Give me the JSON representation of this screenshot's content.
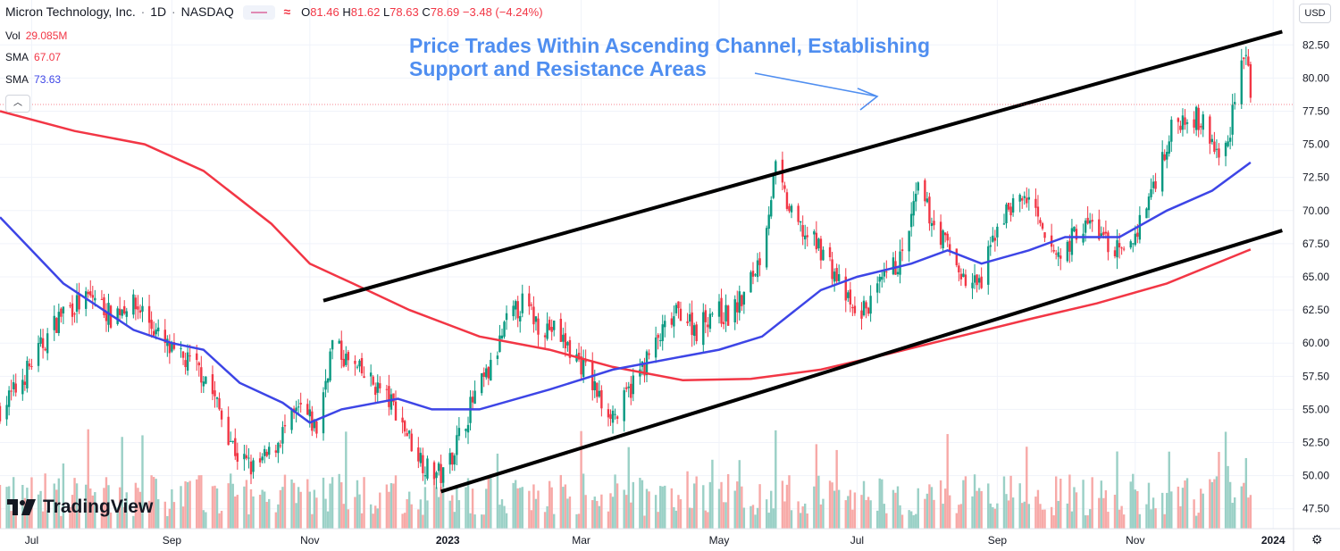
{
  "header": {
    "title": "Micron Technology, Inc.",
    "sep": "·",
    "interval": "1D",
    "exchange": "NASDAQ",
    "open_label": "O",
    "open": "81.46",
    "high_label": "H",
    "high": "81.62",
    "low_label": "L",
    "low": "78.63",
    "close_label": "C",
    "close": "78.69",
    "change": "−3.48 (−4.24%)"
  },
  "indicators": [
    {
      "label": "Vol",
      "value": "29.085M"
    },
    {
      "label": "SMA",
      "value": "67.07"
    },
    {
      "label": "SMA",
      "value": "73.63"
    }
  ],
  "currency": "USD",
  "annotation": {
    "line1": "Price Trades Within Ascending Channel, Establishing",
    "line2": "Support and Resistance Areas"
  },
  "logo_text": "TradingView",
  "colors": {
    "up": "#089981",
    "down": "#f23645",
    "sma_fast": "#3d45e6",
    "sma_slow": "#f23645",
    "channel": "#000000",
    "annotation": "#4f8ef0",
    "vol_up": "#9ad0c6",
    "vol_down": "#f7a9a7"
  },
  "chart_data": {
    "type": "candlestick",
    "y_axis": {
      "ticks": [
        47.5,
        50.0,
        52.5,
        55.0,
        57.5,
        60.0,
        62.5,
        65.0,
        67.5,
        70.0,
        72.5,
        75.0,
        77.5,
        80.0,
        82.5
      ],
      "range": [
        46.0,
        84.0
      ]
    },
    "x_axis": {
      "range": [
        "2022-06-17",
        "2024-01-10"
      ],
      "ticks": [
        {
          "date": "2022-07-01",
          "label": "Jul"
        },
        {
          "date": "2022-09-01",
          "label": "Sep"
        },
        {
          "date": "2022-11-01",
          "label": "Nov"
        },
        {
          "date": "2023-01-01",
          "label": "2023"
        },
        {
          "date": "2023-03-01",
          "label": "Mar"
        },
        {
          "date": "2023-05-01",
          "label": "May"
        },
        {
          "date": "2023-07-01",
          "label": "Jul"
        },
        {
          "date": "2023-09-01",
          "label": "Sep"
        },
        {
          "date": "2023-11-01",
          "label": "Nov"
        },
        {
          "date": "2024-01-01",
          "label": "2024"
        }
      ]
    },
    "price_path": [
      [
        "2022-06-17",
        55.0
      ],
      [
        "2022-06-24",
        56.5
      ],
      [
        "2022-07-01",
        58.5
      ],
      [
        "2022-07-08",
        60.5
      ],
      [
        "2022-07-15",
        62.5
      ],
      [
        "2022-07-22",
        63.0
      ],
      [
        "2022-07-29",
        63.5
      ],
      [
        "2022-08-05",
        62.0
      ],
      [
        "2022-08-12",
        63.0
      ],
      [
        "2022-08-19",
        62.5
      ],
      [
        "2022-08-26",
        60.5
      ],
      [
        "2022-09-02",
        59.0
      ],
      [
        "2022-09-09",
        58.5
      ],
      [
        "2022-09-16",
        57.5
      ],
      [
        "2022-09-23",
        54.5
      ],
      [
        "2022-09-30",
        51.5
      ],
      [
        "2022-10-07",
        50.5
      ],
      [
        "2022-10-14",
        51.5
      ],
      [
        "2022-10-21",
        53.5
      ],
      [
        "2022-10-28",
        55.0
      ],
      [
        "2022-11-04",
        53.5
      ],
      [
        "2022-11-11",
        60.0
      ],
      [
        "2022-11-18",
        58.5
      ],
      [
        "2022-11-25",
        57.5
      ],
      [
        "2022-12-02",
        56.5
      ],
      [
        "2022-12-09",
        55.0
      ],
      [
        "2022-12-16",
        52.5
      ],
      [
        "2022-12-23",
        50.5
      ],
      [
        "2022-12-30",
        50.0
      ],
      [
        "2023-01-06",
        53.0
      ],
      [
        "2023-01-13",
        56.0
      ],
      [
        "2023-01-20",
        58.0
      ],
      [
        "2023-01-27",
        61.5
      ],
      [
        "2023-02-03",
        63.0
      ],
      [
        "2023-02-10",
        61.5
      ],
      [
        "2023-02-17",
        61.0
      ],
      [
        "2023-02-24",
        59.5
      ],
      [
        "2023-03-03",
        58.0
      ],
      [
        "2023-03-10",
        55.5
      ],
      [
        "2023-03-17",
        54.5
      ],
      [
        "2023-03-24",
        57.0
      ],
      [
        "2023-03-31",
        59.0
      ],
      [
        "2023-04-07",
        61.0
      ],
      [
        "2023-04-14",
        62.5
      ],
      [
        "2023-04-21",
        61.0
      ],
      [
        "2023-04-28",
        62.5
      ],
      [
        "2023-05-05",
        62.0
      ],
      [
        "2023-05-12",
        63.5
      ],
      [
        "2023-05-19",
        66.5
      ],
      [
        "2023-05-26",
        73.0
      ],
      [
        "2023-06-02",
        69.5
      ],
      [
        "2023-06-09",
        68.0
      ],
      [
        "2023-06-16",
        67.0
      ],
      [
        "2023-06-23",
        64.5
      ],
      [
        "2023-06-30",
        62.0
      ],
      [
        "2023-07-07",
        63.0
      ],
      [
        "2023-07-14",
        65.0
      ],
      [
        "2023-07-21",
        66.5
      ],
      [
        "2023-07-28",
        71.5
      ],
      [
        "2023-08-04",
        69.0
      ],
      [
        "2023-08-11",
        67.0
      ],
      [
        "2023-08-18",
        64.5
      ],
      [
        "2023-08-25",
        64.5
      ],
      [
        "2023-09-01",
        69.0
      ],
      [
        "2023-09-08",
        70.5
      ],
      [
        "2023-09-15",
        71.0
      ],
      [
        "2023-09-22",
        67.5
      ],
      [
        "2023-09-29",
        66.5
      ],
      [
        "2023-10-06",
        68.5
      ],
      [
        "2023-10-13",
        69.0
      ],
      [
        "2023-10-20",
        67.5
      ],
      [
        "2023-10-27",
        66.5
      ],
      [
        "2023-11-03",
        69.0
      ],
      [
        "2023-11-10",
        72.5
      ],
      [
        "2023-11-17",
        76.0
      ],
      [
        "2023-11-24",
        77.5
      ],
      [
        "2023-12-01",
        76.5
      ],
      [
        "2023-12-08",
        74.0
      ],
      [
        "2023-12-12",
        75.0
      ],
      [
        "2023-12-15",
        79.0
      ],
      [
        "2023-12-19",
        82.0
      ],
      [
        "2023-12-21",
        81.0
      ],
      [
        "2023-12-22",
        78.69
      ]
    ],
    "sma_fast": {
      "value": 73.63,
      "points": [
        [
          "2022-06-17",
          69.5
        ],
        [
          "2022-07-15",
          64.5
        ],
        [
          "2022-08-15",
          61.0
        ],
        [
          "2022-09-01",
          60.0
        ],
        [
          "2022-09-15",
          59.5
        ],
        [
          "2022-10-01",
          57.0
        ],
        [
          "2022-10-20",
          55.5
        ],
        [
          "2022-11-01",
          54.0
        ],
        [
          "2022-11-15",
          55.0
        ],
        [
          "2022-12-10",
          55.8
        ],
        [
          "2022-12-25",
          55.0
        ],
        [
          "2023-01-15",
          55.0
        ],
        [
          "2023-02-15",
          56.5
        ],
        [
          "2023-03-15",
          58.0
        ],
        [
          "2023-04-15",
          59.0
        ],
        [
          "2023-05-01",
          59.5
        ],
        [
          "2023-05-20",
          60.5
        ],
        [
          "2023-06-15",
          64.0
        ],
        [
          "2023-07-01",
          65.0
        ],
        [
          "2023-07-25",
          66.0
        ],
        [
          "2023-08-10",
          67.0
        ],
        [
          "2023-08-25",
          66.0
        ],
        [
          "2023-09-15",
          67.0
        ],
        [
          "2023-10-01",
          68.0
        ],
        [
          "2023-10-25",
          68.0
        ],
        [
          "2023-11-15",
          70.0
        ],
        [
          "2023-12-05",
          71.5
        ],
        [
          "2023-12-22",
          73.63
        ]
      ]
    },
    "sma_slow": {
      "value": 67.07,
      "points": [
        [
          "2022-06-17",
          77.5
        ],
        [
          "2022-07-20",
          76.0
        ],
        [
          "2022-08-20",
          75.0
        ],
        [
          "2022-09-15",
          73.0
        ],
        [
          "2022-10-15",
          69.0
        ],
        [
          "2022-11-01",
          66.0
        ],
        [
          "2022-11-20",
          64.5
        ],
        [
          "2022-12-15",
          62.5
        ],
        [
          "2023-01-15",
          60.5
        ],
        [
          "2023-02-15",
          59.5
        ],
        [
          "2023-03-15",
          58.2
        ],
        [
          "2023-04-15",
          57.2
        ],
        [
          "2023-05-15",
          57.3
        ],
        [
          "2023-06-15",
          58.0
        ],
        [
          "2023-07-15",
          59.2
        ],
        [
          "2023-08-15",
          60.5
        ],
        [
          "2023-09-15",
          61.8
        ],
        [
          "2023-10-15",
          63.0
        ],
        [
          "2023-11-15",
          64.5
        ],
        [
          "2023-12-22",
          67.07
        ]
      ]
    },
    "channel_upper": [
      [
        "2022-11-07",
        63.2
      ],
      [
        "2024-01-05",
        83.5
      ]
    ],
    "channel_lower": [
      [
        "2022-12-29",
        48.8
      ],
      [
        "2024-01-05",
        68.5
      ]
    ],
    "volume_panel_max_m": 110
  }
}
